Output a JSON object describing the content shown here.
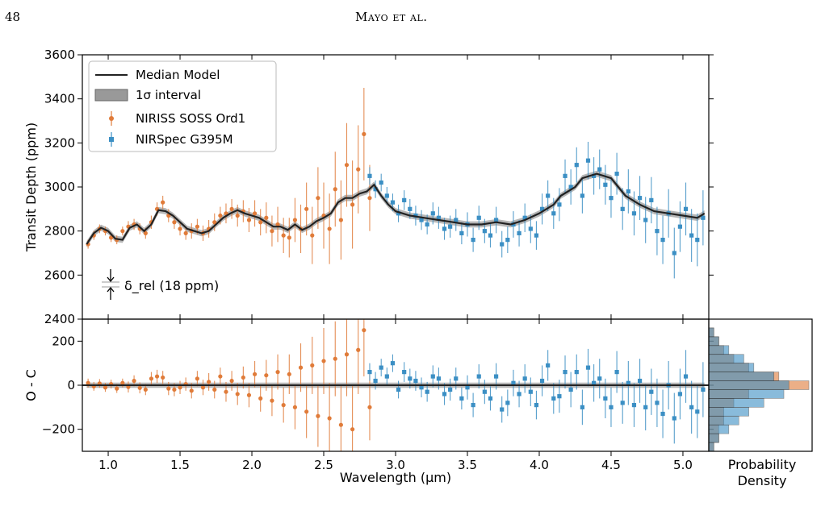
{
  "header": {
    "page_number": "48",
    "running_title": "Mayo et al."
  },
  "chart_data": [
    {
      "type": "scatter",
      "panel": "top",
      "xlabel": "",
      "ylabel": "Transit Depth (ppm)",
      "xlim": [
        0.82,
        5.18
      ],
      "ylim": [
        2400,
        3600
      ],
      "yticks": [
        2400,
        2600,
        2800,
        3000,
        3200,
        3400,
        3600
      ],
      "legend": {
        "placement": "upper-left",
        "entries": [
          "Median Model",
          "1σ interval",
          "NIRISS SOSS Ord1",
          "NIRSpec G395M"
        ]
      },
      "annotation": "δ_rel (18 ppm)",
      "colors": {
        "niriss": "#e07b39",
        "nirspec": "#3b8fc4",
        "model": "#222222",
        "interval": "#999999"
      },
      "model_median": {
        "x": [
          0.85,
          0.9,
          0.95,
          1.0,
          1.05,
          1.1,
          1.15,
          1.2,
          1.25,
          1.3,
          1.35,
          1.4,
          1.45,
          1.5,
          1.55,
          1.6,
          1.65,
          1.7,
          1.75,
          1.8,
          1.85,
          1.9,
          1.95,
          2.0,
          2.05,
          2.1,
          2.15,
          2.2,
          2.25,
          2.3,
          2.35,
          2.4,
          2.45,
          2.5,
          2.55,
          2.6,
          2.65,
          2.7,
          2.75,
          2.8,
          2.85,
          2.9,
          2.95,
          3.0,
          3.1,
          3.2,
          3.3,
          3.4,
          3.5,
          3.6,
          3.7,
          3.8,
          3.9,
          4.0,
          4.1,
          4.15,
          4.2,
          4.25,
          4.3,
          4.35,
          4.4,
          4.45,
          4.5,
          4.55,
          4.6,
          4.7,
          4.8,
          4.9,
          5.0,
          5.1,
          5.15
        ],
        "y": [
          2740,
          2790,
          2815,
          2800,
          2765,
          2760,
          2815,
          2830,
          2800,
          2830,
          2895,
          2890,
          2870,
          2840,
          2810,
          2800,
          2790,
          2800,
          2830,
          2860,
          2880,
          2895,
          2880,
          2870,
          2860,
          2840,
          2820,
          2820,
          2805,
          2830,
          2805,
          2820,
          2845,
          2860,
          2880,
          2930,
          2950,
          2950,
          2970,
          2980,
          3010,
          2960,
          2920,
          2890,
          2870,
          2860,
          2850,
          2840,
          2830,
          2830,
          2840,
          2830,
          2850,
          2880,
          2920,
          2960,
          2980,
          3000,
          3040,
          3050,
          3060,
          3050,
          3040,
          3000,
          2960,
          2920,
          2890,
          2880,
          2870,
          2860,
          2880
        ]
      },
      "series": [
        {
          "name": "NIRISS SOSS Ord1",
          "x": [
            0.86,
            0.9,
            0.94,
            0.98,
            1.02,
            1.06,
            1.1,
            1.14,
            1.18,
            1.22,
            1.26,
            1.3,
            1.34,
            1.38,
            1.42,
            1.46,
            1.5,
            1.54,
            1.58,
            1.62,
            1.66,
            1.7,
            1.74,
            1.78,
            1.82,
            1.86,
            1.9,
            1.94,
            1.98,
            2.02,
            2.06,
            2.1,
            2.14,
            2.18,
            2.22,
            2.26,
            2.3,
            2.34,
            2.38,
            2.42,
            2.46,
            2.5,
            2.54,
            2.58,
            2.62,
            2.66,
            2.7,
            2.74,
            2.78,
            2.82
          ],
          "y": [
            2740,
            2780,
            2810,
            2800,
            2770,
            2760,
            2800,
            2820,
            2830,
            2810,
            2790,
            2840,
            2900,
            2930,
            2870,
            2840,
            2810,
            2790,
            2800,
            2820,
            2790,
            2810,
            2840,
            2870,
            2880,
            2900,
            2870,
            2890,
            2850,
            2880,
            2840,
            2860,
            2800,
            2830,
            2780,
            2770,
            2850,
            2810,
            2900,
            2780,
            2950,
            2870,
            2810,
            2990,
            2850,
            3100,
            2920,
            3080,
            3240,
            2950
          ],
          "yerr": [
            20,
            20,
            20,
            20,
            20,
            20,
            20,
            25,
            25,
            25,
            25,
            30,
            30,
            30,
            30,
            30,
            30,
            30,
            35,
            35,
            35,
            40,
            40,
            40,
            45,
            45,
            50,
            50,
            55,
            60,
            60,
            70,
            70,
            80,
            80,
            90,
            100,
            110,
            120,
            130,
            140,
            150,
            160,
            170,
            180,
            190,
            200,
            200,
            210,
            150
          ]
        },
        {
          "name": "NIRSpec G395M",
          "x": [
            2.82,
            2.86,
            2.9,
            2.94,
            2.98,
            3.02,
            3.06,
            3.1,
            3.14,
            3.18,
            3.22,
            3.26,
            3.3,
            3.34,
            3.38,
            3.42,
            3.46,
            3.5,
            3.54,
            3.58,
            3.62,
            3.66,
            3.7,
            3.74,
            3.78,
            3.82,
            3.86,
            3.9,
            3.94,
            3.98,
            4.02,
            4.06,
            4.1,
            4.14,
            4.18,
            4.22,
            4.26,
            4.3,
            4.34,
            4.38,
            4.42,
            4.46,
            4.5,
            4.54,
            4.58,
            4.62,
            4.66,
            4.7,
            4.74,
            4.78,
            4.82,
            4.86,
            4.9,
            4.94,
            4.98,
            5.02,
            5.06,
            5.1,
            5.14
          ],
          "y": [
            3050,
            2990,
            3020,
            2960,
            2930,
            2880,
            2940,
            2900,
            2870,
            2850,
            2830,
            2880,
            2860,
            2810,
            2820,
            2850,
            2790,
            2830,
            2760,
            2860,
            2800,
            2780,
            2850,
            2740,
            2760,
            2830,
            2790,
            2860,
            2810,
            2780,
            2900,
            2960,
            2880,
            2920,
            3050,
            3000,
            3100,
            2960,
            3120,
            3050,
            3080,
            3010,
            2950,
            3060,
            2900,
            2980,
            2880,
            2950,
            2850,
            2940,
            2800,
            2760,
            2880,
            2700,
            2820,
            2900,
            2780,
            2760,
            2860
          ],
          "yerr": [
            40,
            40,
            40,
            40,
            40,
            40,
            45,
            45,
            45,
            45,
            45,
            50,
            50,
            50,
            50,
            50,
            50,
            55,
            55,
            55,
            55,
            55,
            60,
            60,
            60,
            60,
            60,
            65,
            65,
            65,
            70,
            70,
            70,
            75,
            75,
            80,
            80,
            80,
            85,
            85,
            90,
            90,
            90,
            95,
            95,
            100,
            100,
            100,
            105,
            105,
            110,
            110,
            110,
            115,
            115,
            120,
            120,
            120,
            125
          ]
        }
      ]
    },
    {
      "type": "scatter",
      "panel": "residuals",
      "xlabel": "Wavelength (μm)",
      "ylabel": "O - C",
      "xlim": [
        0.82,
        5.18
      ],
      "ylim": [
        -300,
        300
      ],
      "xticks": [
        "1.0",
        "1.5",
        "2.0",
        "2.5",
        "3.0",
        "3.5",
        "4.0",
        "4.5",
        "5.0"
      ],
      "yticks": [
        -200,
        0,
        200
      ],
      "series": [
        {
          "name": "NIRISS SOSS Ord1",
          "x": [
            0.86,
            0.9,
            0.94,
            0.98,
            1.02,
            1.06,
            1.1,
            1.14,
            1.18,
            1.22,
            1.26,
            1.3,
            1.34,
            1.38,
            1.42,
            1.46,
            1.5,
            1.54,
            1.58,
            1.62,
            1.66,
            1.7,
            1.74,
            1.78,
            1.82,
            1.86,
            1.9,
            1.94,
            1.98,
            2.02,
            2.06,
            2.1,
            2.14,
            2.18,
            2.22,
            2.26,
            2.3,
            2.34,
            2.38,
            2.42,
            2.46,
            2.5,
            2.54,
            2.58,
            2.62,
            2.66,
            2.7,
            2.74,
            2.78,
            2.82
          ],
          "y": [
            10,
            -5,
            8,
            -10,
            5,
            -15,
            10,
            -8,
            20,
            -12,
            -20,
            30,
            40,
            35,
            -15,
            -20,
            -10,
            5,
            -25,
            30,
            -10,
            15,
            -20,
            40,
            -30,
            20,
            -40,
            35,
            -45,
            50,
            -60,
            45,
            -70,
            60,
            -90,
            50,
            -100,
            80,
            -120,
            90,
            -140,
            110,
            -150,
            120,
            -180,
            140,
            -200,
            160,
            250,
            -100
          ],
          "yerr": [
            20,
            20,
            20,
            20,
            20,
            20,
            20,
            25,
            25,
            25,
            25,
            30,
            30,
            30,
            30,
            30,
            30,
            30,
            35,
            35,
            35,
            40,
            40,
            40,
            45,
            45,
            50,
            50,
            55,
            60,
            60,
            70,
            70,
            80,
            80,
            90,
            100,
            110,
            120,
            130,
            140,
            150,
            160,
            170,
            180,
            190,
            200,
            200,
            210,
            150
          ]
        },
        {
          "name": "NIRSpec G395M",
          "x": [
            2.82,
            2.86,
            2.9,
            2.94,
            2.98,
            3.02,
            3.06,
            3.1,
            3.14,
            3.18,
            3.22,
            3.26,
            3.3,
            3.34,
            3.38,
            3.42,
            3.46,
            3.5,
            3.54,
            3.58,
            3.62,
            3.66,
            3.7,
            3.74,
            3.78,
            3.82,
            3.86,
            3.9,
            3.94,
            3.98,
            4.02,
            4.06,
            4.1,
            4.14,
            4.18,
            4.22,
            4.26,
            4.3,
            4.34,
            4.38,
            4.42,
            4.46,
            4.5,
            4.54,
            4.58,
            4.62,
            4.66,
            4.7,
            4.74,
            4.78,
            4.82,
            4.86,
            4.9,
            4.94,
            4.98,
            5.02,
            5.06,
            5.1,
            5.14
          ],
          "y": [
            60,
            20,
            80,
            40,
            100,
            -20,
            60,
            30,
            20,
            -10,
            -30,
            40,
            30,
            -40,
            -20,
            30,
            -60,
            -10,
            -90,
            40,
            -30,
            -60,
            40,
            -110,
            -80,
            10,
            -40,
            30,
            -30,
            -90,
            20,
            90,
            -60,
            -50,
            60,
            -20,
            60,
            -100,
            80,
            10,
            30,
            -60,
            -100,
            60,
            -80,
            10,
            -90,
            20,
            -100,
            -30,
            -80,
            -130,
            0,
            -150,
            -40,
            40,
            -100,
            -120,
            -20
          ],
          "yerr": [
            40,
            40,
            40,
            40,
            40,
            40,
            45,
            45,
            45,
            45,
            45,
            50,
            50,
            50,
            50,
            50,
            50,
            55,
            55,
            55,
            55,
            55,
            60,
            60,
            60,
            60,
            60,
            65,
            65,
            65,
            70,
            70,
            70,
            75,
            75,
            80,
            80,
            80,
            85,
            85,
            90,
            90,
            90,
            95,
            95,
            100,
            100,
            100,
            105,
            105,
            110,
            110,
            110,
            115,
            115,
            120,
            120,
            120,
            125
          ]
        }
      ]
    },
    {
      "type": "bar",
      "panel": "residual-histogram",
      "orientation": "horizontal",
      "xlabel": "Probability\nDensity",
      "bins": [
        -300,
        -260,
        -220,
        -180,
        -140,
        -100,
        -60,
        -20,
        20,
        60,
        100,
        140,
        180,
        220,
        260
      ],
      "series": [
        {
          "name": "NIRISS SOSS Ord1",
          "density": [
            0.05,
            0.1,
            0.1,
            0.15,
            0.15,
            0.25,
            0.4,
            1.0,
            0.7,
            0.4,
            0.25,
            0.15,
            0.1,
            0.05
          ]
        },
        {
          "name": "NIRSpec G395M",
          "density": [
            0.05,
            0.1,
            0.2,
            0.3,
            0.4,
            0.55,
            0.75,
            0.8,
            0.65,
            0.45,
            0.35,
            0.2,
            0.1,
            0.05
          ]
        }
      ]
    }
  ]
}
